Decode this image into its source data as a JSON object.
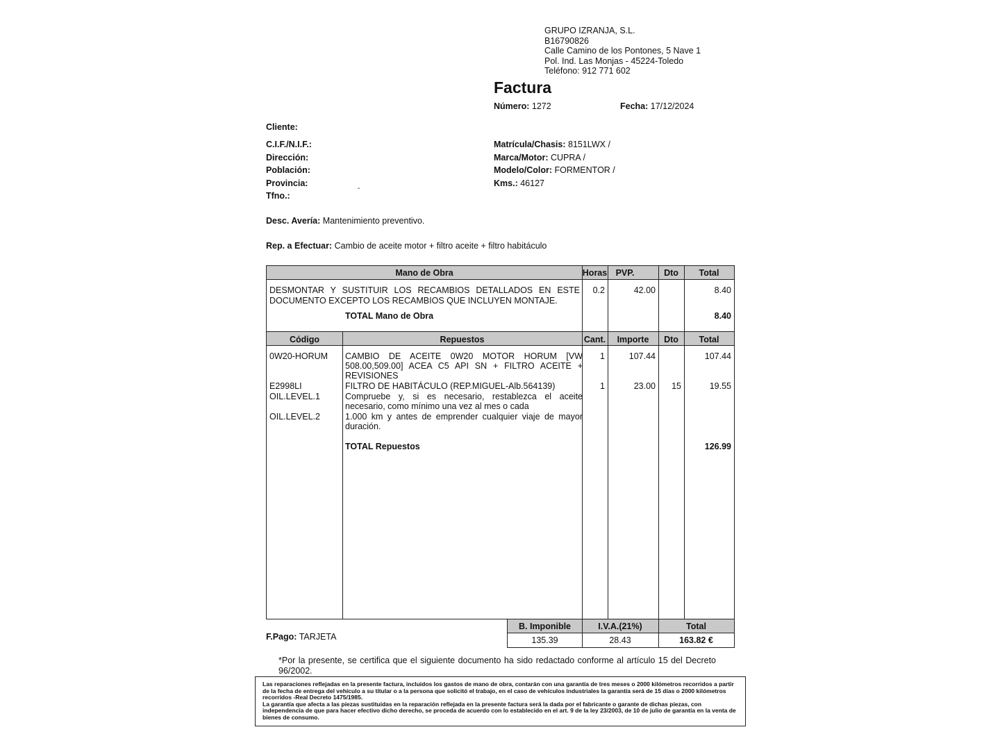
{
  "company": {
    "name": "GRUPO IZRANJA, S.L.",
    "cif": "B16790826",
    "address1": "Calle Camino de los Pontones, 5 Nave 1",
    "address2": "Pol. Ind. Las Monjas - 45224-Toledo",
    "phone": "Teléfono: 912 771 602"
  },
  "invoice": {
    "title": "Factura",
    "number_label": "Número:",
    "number": "1272",
    "date_label": "Fecha:",
    "date": "17/12/2024"
  },
  "client": {
    "cliente_label": "Cliente:",
    "cif_label": "C.I.F./N.I.F.:",
    "direccion_label": "Dirección:",
    "poblacion_label": "Población:",
    "provincia_label": "Provincia:",
    "tfno_label": "Tfno.:",
    "tfno_value": "-"
  },
  "vehicle": {
    "matricula_label": "Matrícula/Chasis:",
    "matricula": "8151LWX /",
    "marca_label": "Marca/Motor:",
    "marca": "CUPRA /",
    "modelo_label": "Modelo/Color:",
    "modelo": "FORMENTOR /",
    "kms_label": "Kms.:",
    "kms": "46127"
  },
  "desc": {
    "averia_label": "Desc. Avería:",
    "averia": "Mantenimiento preventivo.",
    "rep_label": "Rep. a Efectuar:",
    "rep": "Cambio de aceite motor + filtro aceite + filtro habitáculo"
  },
  "labor": {
    "headers": [
      "Mano de Obra",
      "Horas",
      "PVP.",
      "Dto",
      "Total"
    ],
    "line1": "DESMONTAR Y SUSTITUIR LOS RECAMBIOS DETALLADOS EN ESTE",
    "line2": "DOCUMENTO EXCEPTO LOS RECAMBIOS QUE INCLUYEN MONTAJE.",
    "horas": "0.2",
    "pvp": "42.00",
    "total": "8.40",
    "total_label": "TOTAL Mano de Obra",
    "total_value": "8.40"
  },
  "parts": {
    "headers": [
      "Código",
      "Repuestos",
      "Cant.",
      "Importe",
      "Dto",
      "Total"
    ],
    "items": [
      {
        "code": "0W20-HORUM",
        "desc": [
          "CAMBIO DE ACEITE 0W20 MOTOR HORUM [VW",
          "508.00,509.00] ACEA C5 API SN + FILTRO ACEITE +",
          "REVISIONES"
        ],
        "cant": "1",
        "importe": "107.44",
        "dto": "",
        "total": "107.44"
      },
      {
        "code": "E2998LI",
        "desc": [
          "FILTRO DE HABITÁCULO (REP.MIGUEL-Alb.564139)"
        ],
        "cant": "1",
        "importe": "23.00",
        "dto": "15",
        "total": "19.55"
      },
      {
        "code": "OIL.LEVEL.1",
        "desc": [
          "Compruebe y, si es necesario, restablezca el aceite",
          "necesario, como mínimo una vez al mes o cada"
        ]
      },
      {
        "code": "OIL.LEVEL.2",
        "desc": [
          "1.000 km y antes de emprender cualquier viaje de mayor",
          "duración."
        ]
      }
    ],
    "total_label": "TOTAL Repuestos",
    "total_value": "126.99"
  },
  "totals": {
    "headers": [
      "B. Imponible",
      "I.V.A.(21%)",
      "Total"
    ],
    "base": "135.39",
    "iva": "28.43",
    "total": "163.82 €"
  },
  "payment": {
    "label": "F.Pago:",
    "value": "TARJETA"
  },
  "certification": "*Por la presente, se certifica que el siguiente documento ha sido redactado conforme al artículo 15 del Decreto 96/2002.",
  "warranty": [
    "Las reparaciones reflejadas en la presente factura, incluidos los gastos de mano de obra, contarán con una garantía de tres meses o 2000 kilómetros recorridos a partir de la fecha de entrega del vehículo a su titular o a la persona que solicitó el trabajo, en el caso de vehículos industriales la garantía será de 15 días o 2000 kilómetros recorridos -Real Decreto 1475/1985.",
    "La garantía que afecta a las piezas sustituidas en la reparación reflejada en la presente factura será la dada por el fabricante o garante de dichas piezas, con independencia de que para hacer efectivo dicho derecho, se proceda de acuerdo con lo establecido en el art. 9 de la ley 23/2003, de 10 de julio de garantía en la venta de bienes de consumo."
  ]
}
